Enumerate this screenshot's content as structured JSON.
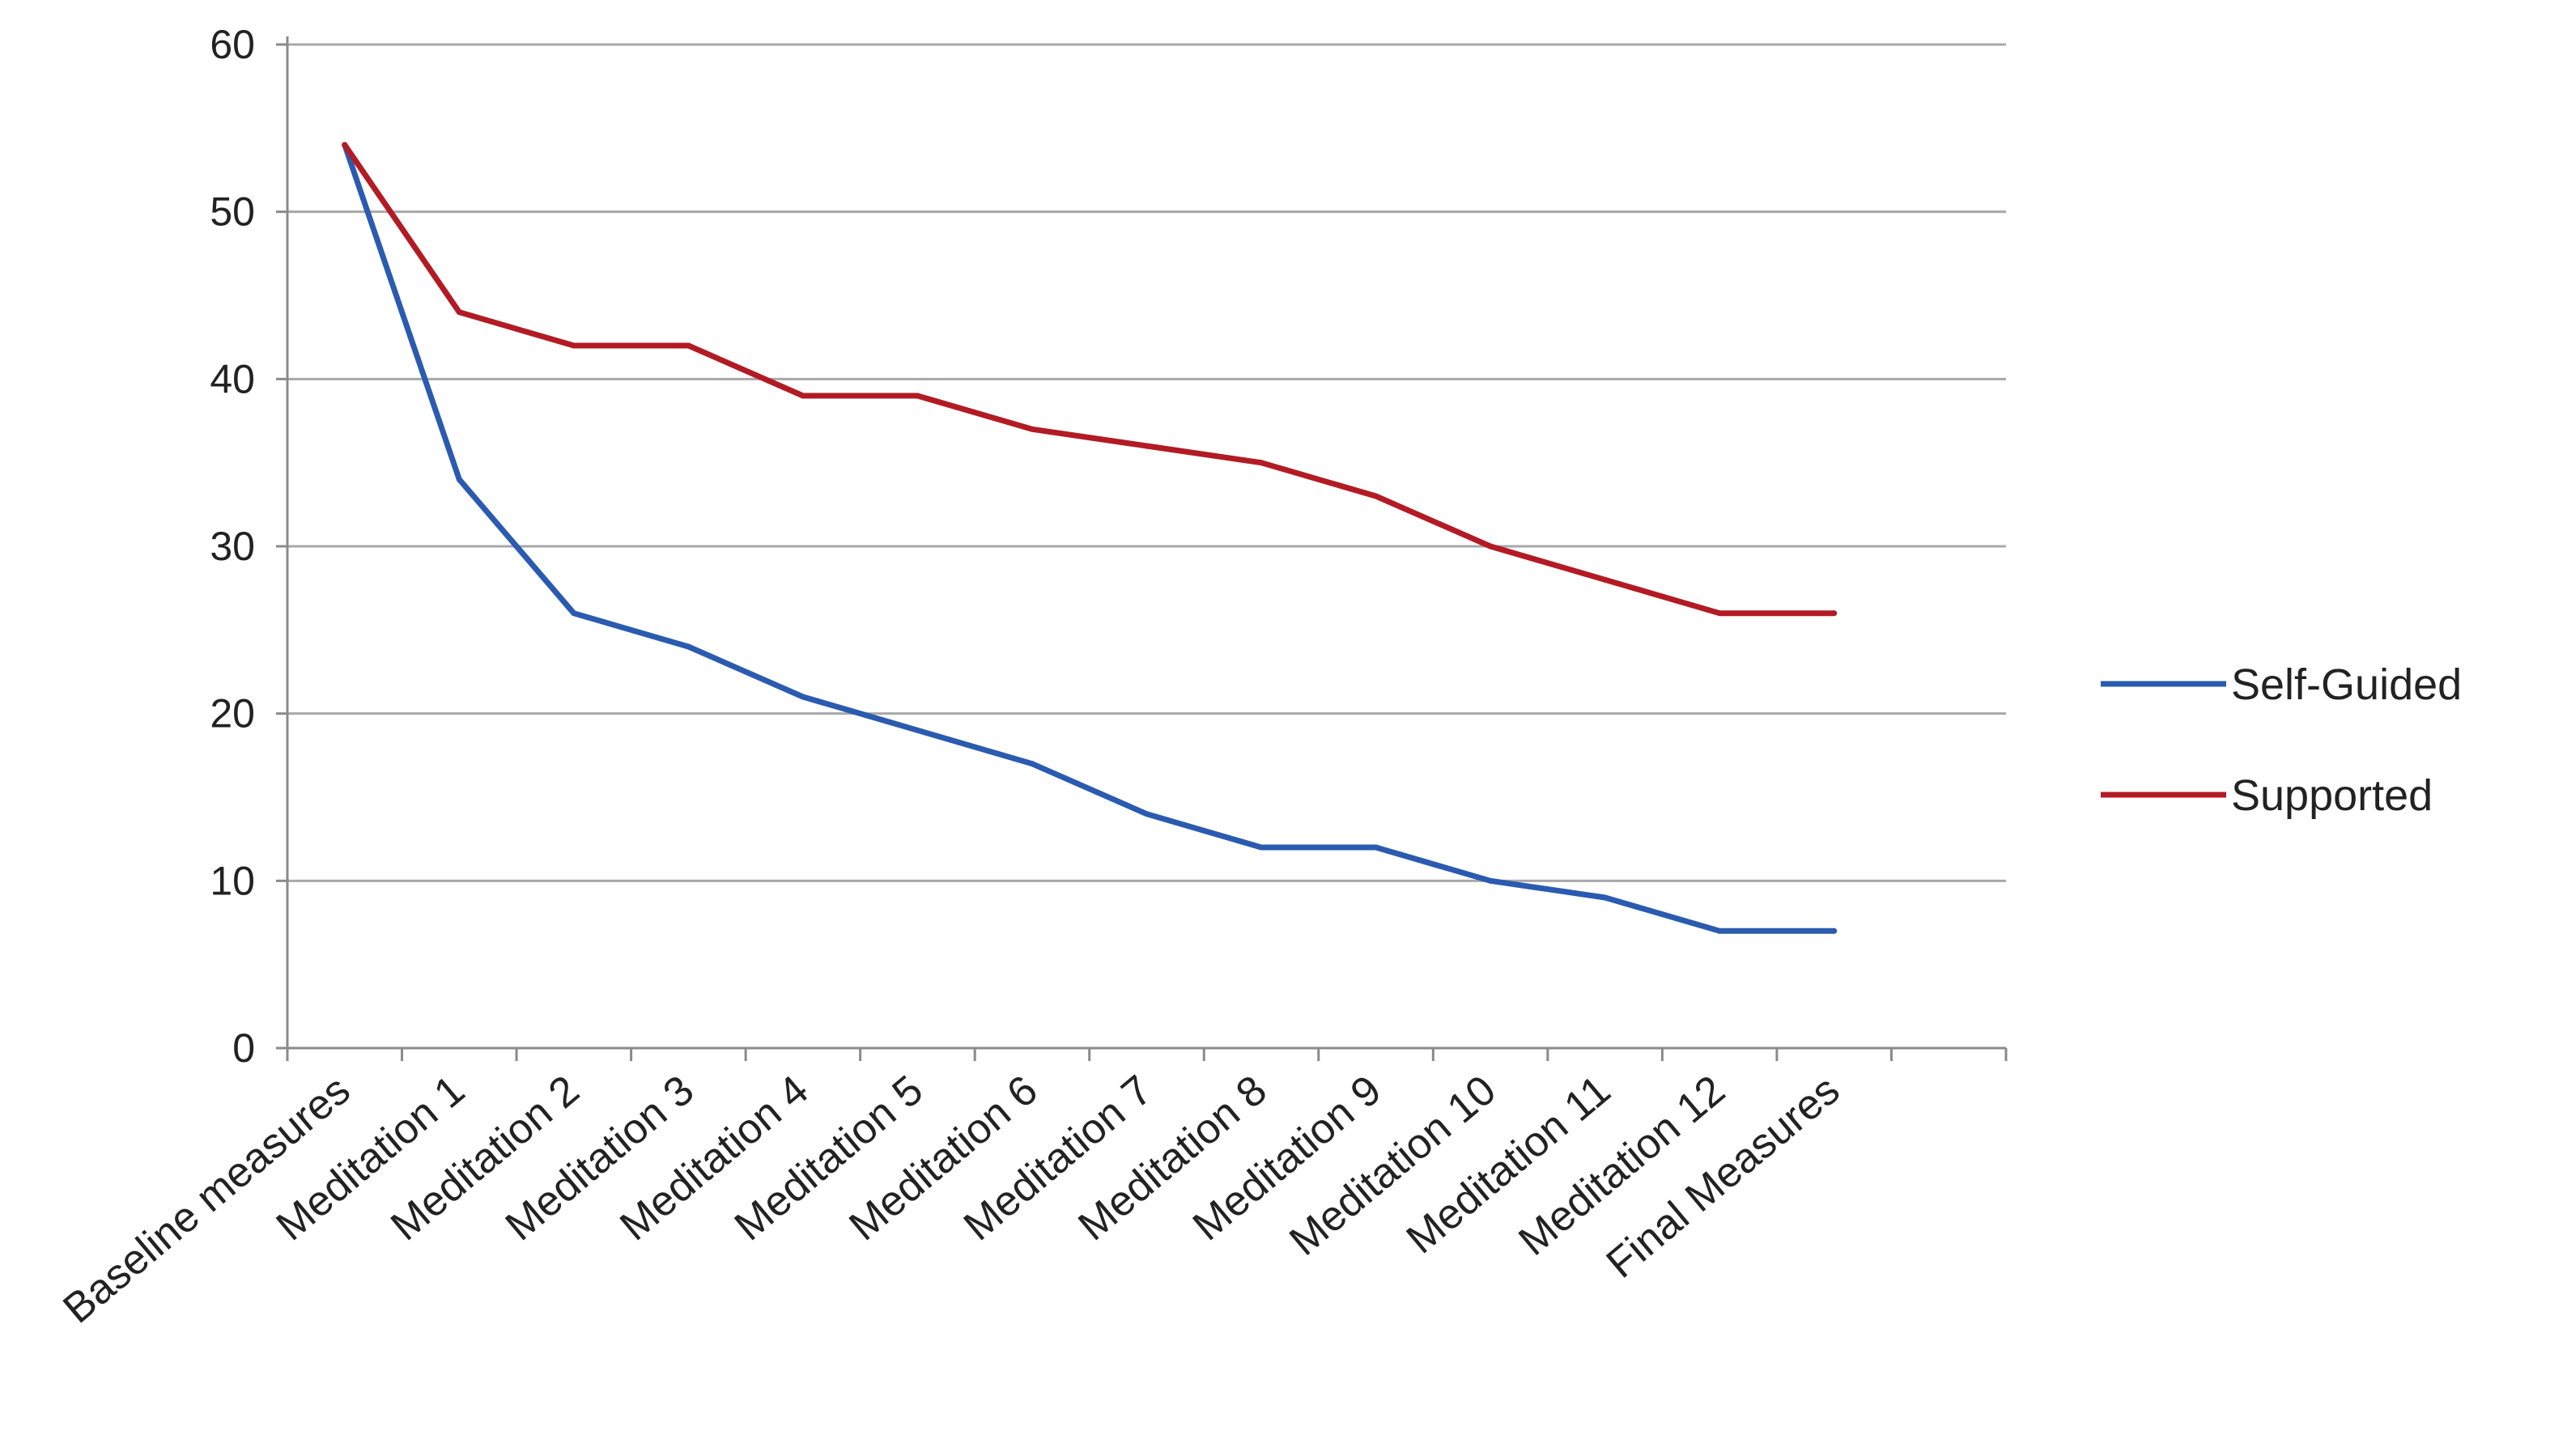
{
  "chart_data": {
    "type": "line",
    "title": "",
    "xlabel": "",
    "ylabel": "",
    "ylim": [
      0,
      60
    ],
    "yticks": [
      "0",
      "10",
      "20",
      "30",
      "40",
      "50",
      "60"
    ],
    "grid": "horizontal",
    "legend_position": "right",
    "categories": [
      "Baseline measures",
      "Meditation 1",
      "Meditation 2",
      "Meditation 3",
      "Meditation 4",
      "Meditation 5",
      "Meditation 6",
      "Meditation 7",
      "Meditation 8",
      "Meditation 9",
      "Meditation 10",
      "Meditation 11",
      "Meditation 12",
      "Final Measures"
    ],
    "series": [
      {
        "name": "Self-Guided",
        "color": "#2a5bb0",
        "values": [
          54,
          34,
          26,
          24,
          21,
          19,
          17,
          14,
          12,
          12,
          10,
          9,
          7,
          7
        ]
      },
      {
        "name": "Supported",
        "color": "#b31b24",
        "values": [
          54,
          44,
          42,
          42,
          39,
          39,
          37,
          36,
          35,
          33,
          30,
          28,
          26,
          26
        ]
      }
    ]
  }
}
